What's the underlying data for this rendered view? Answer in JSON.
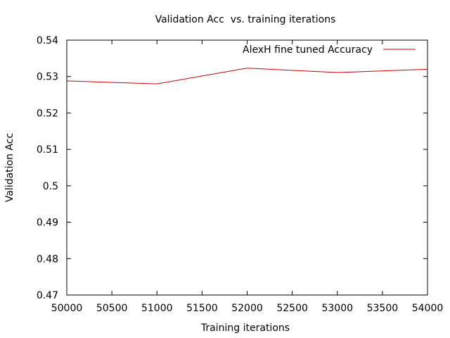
{
  "chart_data": {
    "type": "line",
    "title": "Validation Acc  vs. training iterations",
    "xlabel": "Training iterations",
    "ylabel": "Validation Acc",
    "xlim": [
      50000,
      54000
    ],
    "ylim": [
      0.47,
      0.54
    ],
    "xticks": [
      50000,
      50500,
      51000,
      51500,
      52000,
      52500,
      53000,
      53500,
      54000
    ],
    "yticks": [
      0.47,
      0.48,
      0.49,
      0.5,
      0.51,
      0.52,
      0.53,
      0.54
    ],
    "ytick_labels": [
      "0.47",
      "0.48",
      "0.49",
      "0.5",
      "0.51",
      "0.52",
      "0.53",
      "0.54"
    ],
    "grid": false,
    "legend": "top-right",
    "series": [
      {
        "name": "AlexH fine tuned Accuracy",
        "color": "#cc0000",
        "x": [
          50000,
          51000,
          52000,
          53000,
          54000
        ],
        "y": [
          0.5288,
          0.528,
          0.5323,
          0.5311,
          0.532
        ]
      }
    ]
  }
}
